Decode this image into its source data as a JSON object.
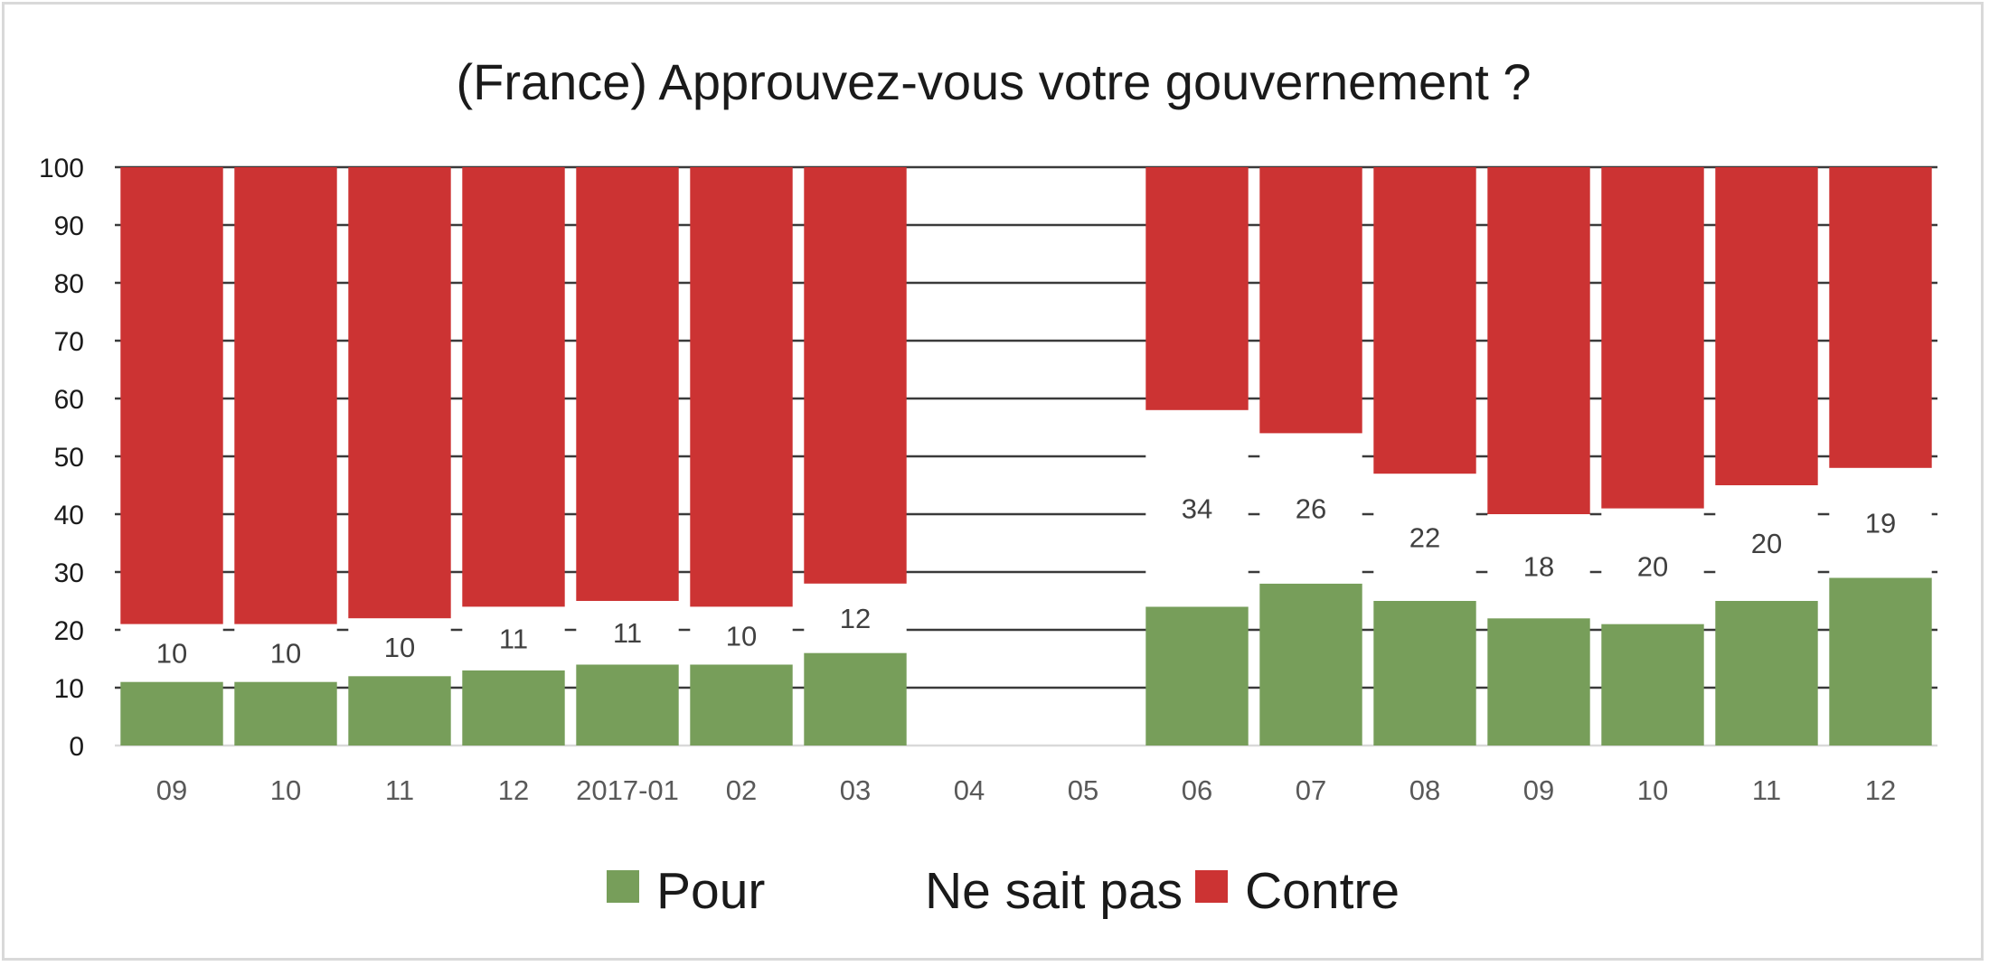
{
  "chart_data": {
    "type": "bar",
    "title": "(France) Approuvez-vous votre gouvernement ?",
    "xlabel": "",
    "ylabel": "",
    "ylim": [
      0,
      100
    ],
    "yticks": [
      0,
      10,
      20,
      30,
      40,
      50,
      60,
      70,
      80,
      90,
      100
    ],
    "grid": true,
    "stacked": true,
    "legend_position": "bottom",
    "categories": [
      "09",
      "10",
      "11",
      "12",
      "2017-01",
      "02",
      "03",
      "04",
      "05",
      "06",
      "07",
      "08",
      "09",
      "10",
      "11",
      "12"
    ],
    "series": [
      {
        "name": "Pour",
        "color": "#779e5a",
        "values": [
          11,
          11,
          12,
          13,
          14,
          14,
          16,
          null,
          null,
          24,
          28,
          25,
          22,
          21,
          25,
          29
        ]
      },
      {
        "name": "Ne sait pas",
        "color": "#ffffff",
        "values": [
          10,
          10,
          10,
          11,
          11,
          10,
          12,
          null,
          null,
          34,
          26,
          22,
          18,
          20,
          20,
          19
        ]
      },
      {
        "name": "Contre",
        "color": "#cc3333",
        "values": [
          79,
          79,
          78,
          76,
          75,
          76,
          72,
          null,
          null,
          42,
          46,
          53,
          60,
          59,
          55,
          52
        ]
      }
    ]
  }
}
